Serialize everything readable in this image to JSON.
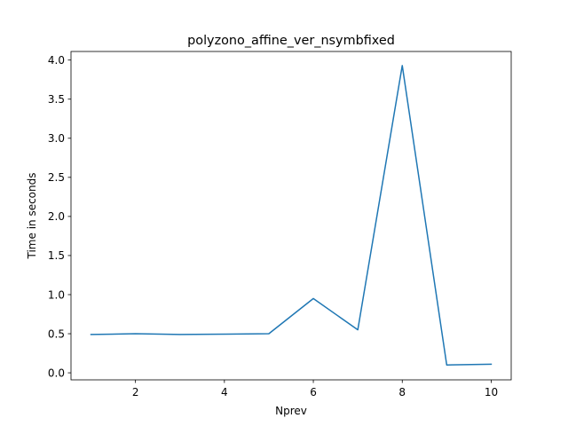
{
  "chart_data": {
    "type": "line",
    "title": "polyzono_affine_ver_nsymbfixed",
    "xlabel": "Nprev",
    "ylabel": "Time in seconds",
    "xlim": [
      0.55,
      10.45
    ],
    "ylim": [
      -0.09,
      4.11
    ],
    "grid": false,
    "x_ticks": [
      2,
      4,
      6,
      8,
      10
    ],
    "x_tick_labels": [
      "2",
      "4",
      "6",
      "8",
      "10"
    ],
    "y_ticks": [
      0.0,
      0.5,
      1.0,
      1.5,
      2.0,
      2.5,
      3.0,
      3.5,
      4.0
    ],
    "y_tick_labels": [
      "0.0",
      "0.5",
      "1.0",
      "1.5",
      "2.0",
      "2.5",
      "3.0",
      "3.5",
      "4.0"
    ],
    "series": [
      {
        "color": "#1f77b4",
        "x": [
          1,
          2,
          3,
          4,
          5,
          6,
          7,
          8,
          9,
          10
        ],
        "values": [
          0.49,
          0.5,
          0.49,
          0.495,
          0.5,
          0.95,
          0.55,
          3.93,
          0.1,
          0.11
        ]
      }
    ]
  }
}
